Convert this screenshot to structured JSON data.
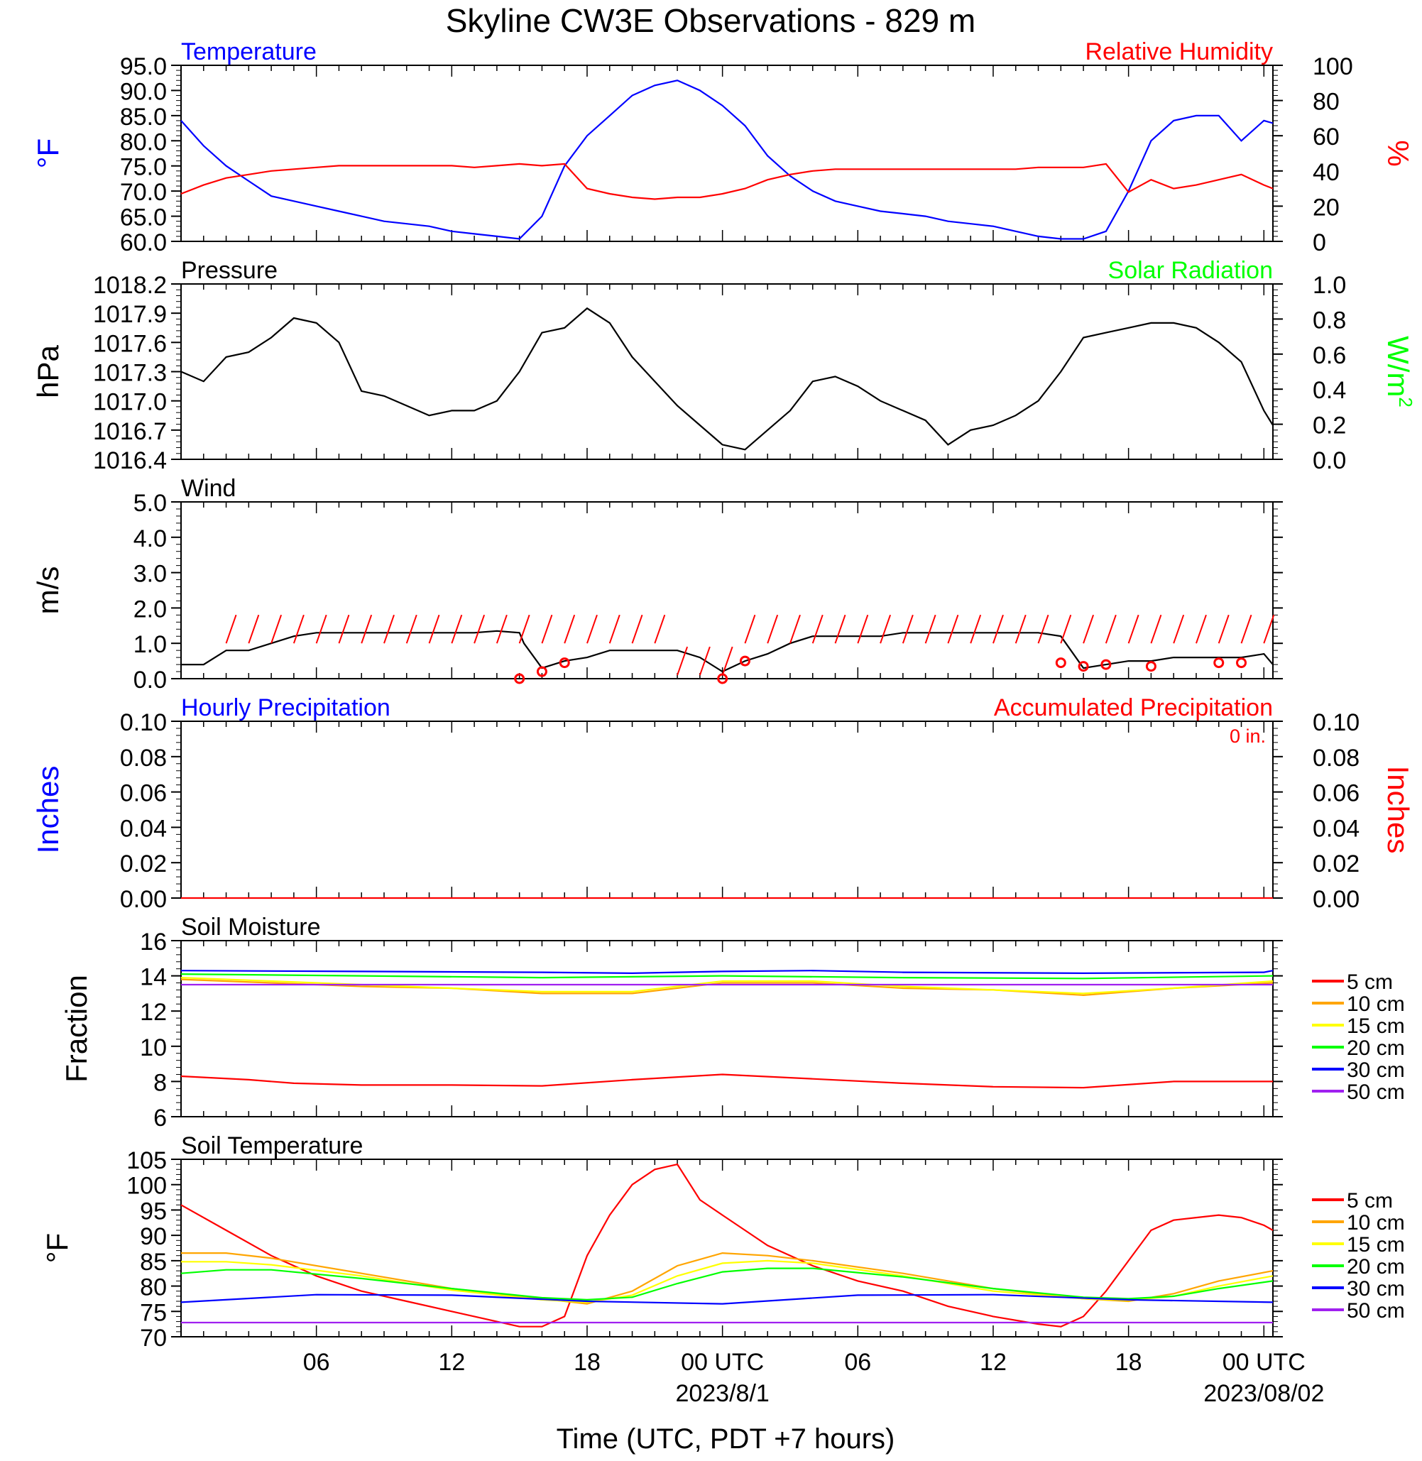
{
  "title": "Skyline CW3E Observations - 829 m",
  "colors": {
    "axis": "#000000",
    "blue": "#0000ff",
    "red": "#ff0000",
    "green": "#00ff00",
    "orange": "#ffa500",
    "yellow": "#ffff00",
    "purple": "#a020f0"
  },
  "x_axis": {
    "label": "Time (UTC, PDT +7 hours)",
    "hour_ticks": [
      {
        "hour": 6,
        "label": "06"
      },
      {
        "hour": 12,
        "label": "12"
      },
      {
        "hour": 18,
        "label": "18"
      },
      {
        "hour": 24,
        "label": "00 UTC"
      },
      {
        "hour": 30,
        "label": "06"
      },
      {
        "hour": 36,
        "label": "12"
      },
      {
        "hour": 42,
        "label": "18"
      },
      {
        "hour": 48,
        "label": "00 UTC"
      }
    ],
    "date_labels": [
      {
        "hour": 24,
        "label": "2023/8/1"
      },
      {
        "hour": 48,
        "label": "2023/08/02"
      }
    ]
  },
  "chart_data": [
    {
      "type": "line",
      "title_left": "Temperature",
      "title_right": "Relative Humidity",
      "ylabel_left": "°F",
      "ylabel_right": "%",
      "x_range_hours_since_2023-07-31T01:00Z": [
        0,
        48.4
      ],
      "ylim_left": [
        60,
        95
      ],
      "ylim_right": [
        0,
        100
      ],
      "yticks_left": [
        "60.0",
        "65.0",
        "70.0",
        "75.0",
        "80.0",
        "85.0",
        "90.0",
        "95.0"
      ],
      "yticks_right": [
        "0",
        "20",
        "40",
        "60",
        "80",
        "100"
      ],
      "series": [
        {
          "name": "Temperature",
          "color": "#0000ff",
          "axis": "left",
          "x": [
            0,
            1,
            2,
            3,
            4,
            5,
            6,
            7,
            8,
            9,
            10,
            11,
            12,
            13,
            14,
            15,
            16,
            17,
            18,
            19,
            20,
            21,
            22,
            23,
            24,
            25,
            26,
            27,
            28,
            29,
            30,
            31,
            32,
            33,
            34,
            35,
            36,
            37,
            38,
            39,
            40,
            41,
            42,
            43,
            44,
            45,
            46,
            47,
            48,
            48.4
          ],
          "y": [
            84,
            79,
            75,
            72,
            69,
            68,
            67,
            66,
            65,
            64,
            63.5,
            63,
            62,
            61.5,
            61,
            60.5,
            65,
            75,
            81,
            85,
            89,
            91,
            92,
            90,
            87,
            83,
            77,
            73,
            70,
            68,
            67,
            66,
            65.5,
            65,
            64,
            63.5,
            63,
            62,
            61,
            60.5,
            60.5,
            62,
            70,
            80,
            84,
            85,
            85,
            80,
            84,
            83.5
          ]
        },
        {
          "name": "Relative Humidity",
          "color": "#ff0000",
          "axis": "right",
          "x": [
            0,
            1,
            2,
            3,
            4,
            5,
            6,
            7,
            8,
            9,
            10,
            11,
            12,
            13,
            14,
            15,
            16,
            17,
            18,
            19,
            20,
            21,
            22,
            23,
            24,
            25,
            26,
            27,
            28,
            29,
            30,
            31,
            32,
            33,
            34,
            35,
            36,
            37,
            38,
            39,
            40,
            41,
            42,
            43,
            44,
            45,
            46,
            47,
            48,
            48.4
          ],
          "y": [
            27,
            32,
            36,
            38,
            40,
            41,
            42,
            43,
            43,
            43,
            43,
            43,
            43,
            42,
            43,
            44,
            43,
            44,
            30,
            27,
            25,
            24,
            25,
            25,
            27,
            30,
            35,
            38,
            40,
            41,
            41,
            41,
            41,
            41,
            41,
            41,
            41,
            41,
            42,
            42,
            42,
            44,
            28,
            35,
            30,
            32,
            35,
            38,
            32,
            30
          ]
        }
      ]
    },
    {
      "type": "line",
      "title_left": "Pressure",
      "title_right": "Solar Radiation",
      "ylabel_left": "hPa",
      "ylabel_right": "W/m",
      "ylabel_right_superscript": "2",
      "ylim_left": [
        1016.4,
        1018.2
      ],
      "ylim_right": [
        0,
        1.0
      ],
      "yticks_left": [
        "1016.4",
        "1016.7",
        "1017.0",
        "1017.3",
        "1017.6",
        "1017.9",
        "1018.2"
      ],
      "yticks_right": [
        "0.0",
        "0.2",
        "0.4",
        "0.6",
        "0.8",
        "1.0"
      ],
      "series": [
        {
          "name": "Pressure",
          "color": "#000000",
          "axis": "left",
          "x": [
            0,
            1,
            2,
            3,
            4,
            5,
            6,
            7,
            8,
            9,
            10,
            11,
            12,
            13,
            14,
            15,
            16,
            17,
            18,
            19,
            20,
            21,
            22,
            23,
            24,
            25,
            26,
            27,
            28,
            29,
            30,
            31,
            32,
            33,
            34,
            35,
            36,
            37,
            38,
            39,
            40,
            41,
            42,
            43,
            44,
            45,
            46,
            47,
            48,
            48.4
          ],
          "y": [
            1017.3,
            1017.2,
            1017.45,
            1017.5,
            1017.65,
            1017.85,
            1017.8,
            1017.6,
            1017.1,
            1017.05,
            1016.95,
            1016.85,
            1016.9,
            1016.9,
            1017.0,
            1017.3,
            1017.7,
            1017.75,
            1017.95,
            1017.8,
            1017.45,
            1017.2,
            1016.95,
            1016.75,
            1016.55,
            1016.5,
            1016.7,
            1016.9,
            1017.2,
            1017.25,
            1017.15,
            1017.0,
            1016.9,
            1016.8,
            1016.55,
            1016.7,
            1016.75,
            1016.85,
            1017.0,
            1017.3,
            1017.65,
            1017.7,
            1017.75,
            1017.8,
            1017.8,
            1017.75,
            1017.6,
            1017.4,
            1016.9,
            1016.75
          ]
        }
      ]
    },
    {
      "type": "line",
      "title_left": "Wind",
      "ylabel_left": "m/s",
      "ylim_left": [
        0,
        5
      ],
      "yticks_left": [
        "0.0",
        "1.0",
        "2.0",
        "3.0",
        "4.0",
        "5.0"
      ],
      "series": [
        {
          "name": "Wind",
          "color": "#000000",
          "axis": "left",
          "x": [
            0,
            1,
            2,
            3,
            4,
            5,
            6,
            7,
            8,
            9,
            10,
            11,
            12,
            13,
            14,
            15,
            15.2,
            16,
            17,
            18,
            19,
            20,
            21,
            22,
            23,
            24,
            25,
            26,
            27,
            28,
            29,
            30,
            31,
            32,
            33,
            34,
            35,
            36,
            37,
            38,
            39,
            40,
            41,
            42,
            43,
            44,
            45,
            46,
            47,
            48,
            48.4
          ],
          "y": [
            0.4,
            0.4,
            0.8,
            0.8,
            1.0,
            1.2,
            1.3,
            1.3,
            1.3,
            1.3,
            1.3,
            1.3,
            1.3,
            1.3,
            1.35,
            1.3,
            1.0,
            0.3,
            0.5,
            0.6,
            0.8,
            0.8,
            0.8,
            0.8,
            0.6,
            0.2,
            0.5,
            0.7,
            1.0,
            1.2,
            1.2,
            1.2,
            1.2,
            1.3,
            1.3,
            1.3,
            1.3,
            1.3,
            1.3,
            1.3,
            1.2,
            0.3,
            0.4,
            0.5,
            0.5,
            0.6,
            0.6,
            0.6,
            0.6,
            0.7,
            0.4
          ]
        }
      ],
      "barbs_x": [
        2,
        3,
        4,
        5,
        6,
        7,
        8,
        9,
        10,
        11,
        12,
        13,
        14,
        15,
        16,
        17,
        18,
        19,
        20,
        21,
        22,
        23,
        24,
        25,
        26,
        27,
        28,
        29,
        30,
        31,
        32,
        33,
        34,
        35,
        36,
        37,
        38,
        39,
        40,
        41,
        42,
        43,
        44,
        45,
        46,
        47,
        48
      ],
      "calm_markers_x": [
        15,
        16,
        17,
        24,
        25,
        39,
        40,
        41,
        43,
        46,
        47
      ],
      "calm_markers_value": [
        0.0,
        0.2,
        0.45,
        0.0,
        0.5,
        0.45,
        0.35,
        0.4,
        0.35,
        0.45,
        0.45
      ]
    },
    {
      "type": "line",
      "title_left": "Hourly Precipitation",
      "title_right": "Accumulated Precipitation",
      "annotation": "0 in.",
      "ylabel_left": "Inches",
      "ylabel_right": "Inches",
      "ylim_left": [
        0,
        0.1
      ],
      "ylim_right": [
        0,
        0.1
      ],
      "yticks_left": [
        "0.00",
        "0.02",
        "0.04",
        "0.06",
        "0.08",
        "0.10"
      ],
      "yticks_right": [
        "0.00",
        "0.02",
        "0.04",
        "0.06",
        "0.08",
        "0.10"
      ],
      "series": [
        {
          "name": "Accumulated Precipitation",
          "color": "#ff0000",
          "axis": "left",
          "x": [
            0,
            48.4
          ],
          "y": [
            0,
            0
          ]
        }
      ]
    },
    {
      "type": "line",
      "title_left": "Soil Moisture",
      "ylabel_left": "Fraction",
      "ylim_left": [
        6,
        16
      ],
      "yticks_left": [
        "6",
        "8",
        "10",
        "12",
        "14",
        "16"
      ],
      "series": [
        {
          "name": "5 cm",
          "color": "#ff0000",
          "x": [
            0,
            3,
            5,
            8,
            12,
            16,
            20,
            24,
            28,
            32,
            36,
            40,
            44,
            48.4
          ],
          "y": [
            8.3,
            8.1,
            7.9,
            7.8,
            7.8,
            7.75,
            8.1,
            8.4,
            8.15,
            7.9,
            7.7,
            7.65,
            8.0,
            8.0
          ]
        },
        {
          "name": "10 cm",
          "color": "#ffa500",
          "x": [
            0,
            4,
            8,
            12,
            16,
            20,
            24,
            28,
            32,
            36,
            40,
            44,
            48.4
          ],
          "y": [
            13.8,
            13.6,
            13.4,
            13.3,
            13.0,
            13.0,
            13.6,
            13.6,
            13.3,
            13.2,
            12.9,
            13.3,
            13.6
          ]
        },
        {
          "name": "15 cm",
          "color": "#ffff00",
          "x": [
            0,
            4,
            8,
            12,
            16,
            20,
            24,
            28,
            32,
            36,
            40,
            44,
            48.4
          ],
          "y": [
            13.9,
            13.7,
            13.5,
            13.3,
            13.1,
            13.1,
            13.7,
            13.7,
            13.4,
            13.2,
            13.0,
            13.3,
            13.7
          ]
        },
        {
          "name": "20 cm",
          "color": "#00ff00",
          "x": [
            0,
            8,
            16,
            24,
            32,
            40,
            48.4
          ],
          "y": [
            14.1,
            14.0,
            13.9,
            14.0,
            13.9,
            13.85,
            14.0
          ]
        },
        {
          "name": "30 cm",
          "color": "#0000ff",
          "x": [
            0,
            8,
            16,
            20,
            24,
            28,
            32,
            40,
            48,
            48.4
          ],
          "y": [
            14.3,
            14.25,
            14.2,
            14.15,
            14.25,
            14.3,
            14.2,
            14.15,
            14.2,
            14.3
          ]
        },
        {
          "name": "50 cm",
          "color": "#a020f0",
          "x": [
            0,
            48.4
          ],
          "y": [
            13.5,
            13.5
          ]
        }
      ]
    },
    {
      "type": "line",
      "title_left": "Soil Temperature",
      "ylabel_left": "°F",
      "ylim_left": [
        70,
        105
      ],
      "yticks_left": [
        "70",
        "75",
        "80",
        "85",
        "90",
        "95",
        "100",
        "105"
      ],
      "series": [
        {
          "name": "5 cm",
          "color": "#ff0000",
          "x": [
            0,
            2,
            4,
            6,
            8,
            10,
            12,
            14,
            15,
            16,
            17,
            18,
            19,
            20,
            21,
            22,
            23,
            24,
            25,
            26,
            28,
            30,
            32,
            34,
            36,
            38,
            39,
            40,
            41,
            42,
            43,
            44,
            45,
            46,
            47,
            48,
            48.4
          ],
          "y": [
            96,
            91,
            86,
            82,
            79,
            77,
            75,
            73,
            72,
            72,
            74,
            86,
            94,
            100,
            103,
            104,
            97,
            94,
            91,
            88,
            84,
            81,
            79,
            76,
            74,
            72.5,
            72,
            74,
            79,
            85,
            91,
            93,
            93.5,
            94,
            93.5,
            92,
            91
          ]
        },
        {
          "name": "10 cm",
          "color": "#ffa500",
          "x": [
            0,
            2,
            4,
            8,
            12,
            16,
            18,
            20,
            22,
            24,
            26,
            28,
            32,
            36,
            40,
            42,
            44,
            46,
            48.4
          ],
          "y": [
            86.5,
            86.5,
            85.5,
            82.5,
            79.5,
            77.5,
            76.5,
            79,
            84,
            86.5,
            86,
            85,
            82.5,
            79.5,
            77.5,
            77,
            78.5,
            81,
            83
          ]
        },
        {
          "name": "15 cm",
          "color": "#ffff00",
          "x": [
            0,
            2,
            4,
            8,
            12,
            16,
            18,
            20,
            22,
            24,
            26,
            28,
            32,
            36,
            40,
            42,
            44,
            46,
            48.4
          ],
          "y": [
            84.8,
            84.8,
            84.2,
            82,
            79.2,
            77.3,
            76.8,
            78.2,
            82,
            84.5,
            85,
            84.5,
            82,
            79,
            77.5,
            77.2,
            78,
            80,
            82
          ]
        },
        {
          "name": "20 cm",
          "color": "#00ff00",
          "x": [
            0,
            2,
            4,
            8,
            12,
            16,
            18,
            20,
            22,
            24,
            26,
            28,
            32,
            36,
            40,
            42,
            44,
            46,
            48.4
          ],
          "y": [
            82.5,
            83.2,
            83.2,
            81.5,
            79.5,
            77.7,
            77.3,
            77.8,
            80.5,
            82.8,
            83.5,
            83.5,
            81.8,
            79.5,
            77.8,
            77.5,
            78,
            79.5,
            81
          ]
        },
        {
          "name": "30 cm",
          "color": "#0000ff",
          "x": [
            0,
            6,
            12,
            18,
            24,
            30,
            36,
            42,
            48.4
          ],
          "y": [
            76.8,
            78.3,
            78.2,
            77.0,
            76.5,
            78.2,
            78.3,
            77.3,
            76.8
          ]
        },
        {
          "name": "50 cm",
          "color": "#a020f0",
          "x": [
            0,
            48.4
          ],
          "y": [
            72.8,
            72.8
          ]
        }
      ]
    }
  ]
}
